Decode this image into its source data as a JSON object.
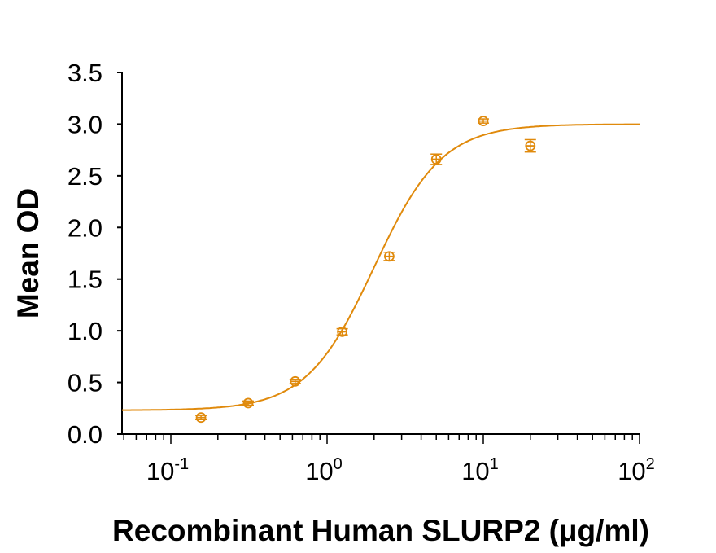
{
  "chart_data": {
    "type": "scatter",
    "title": "",
    "xlabel": "Recombinant Human SLURP2 (μg/ml)",
    "ylabel": "Mean OD",
    "xscale": "log",
    "xlim": [
      0.05,
      100
    ],
    "ylim": [
      0,
      3.5
    ],
    "x_ticks": [
      {
        "value": 0.1,
        "base": "10",
        "exp": "-1"
      },
      {
        "value": 1,
        "base": "10",
        "exp": "0"
      },
      {
        "value": 10,
        "base": "10",
        "exp": "1"
      },
      {
        "value": 100,
        "base": "10",
        "exp": "2"
      }
    ],
    "y_ticks": [
      "0.0",
      "0.5",
      "1.0",
      "1.5",
      "2.0",
      "2.5",
      "3.0",
      "3.5"
    ],
    "grid": false,
    "legend": null,
    "series": [
      {
        "name": "Mean OD",
        "color": "#E08A0C",
        "marker": "open-circle",
        "error_bars": true,
        "x": [
          0.156,
          0.3125,
          0.625,
          1.25,
          2.5,
          5,
          10,
          20
        ],
        "y": [
          0.16,
          0.3,
          0.51,
          0.99,
          1.72,
          2.66,
          3.03,
          2.79
        ],
        "err": [
          0.02,
          0.02,
          0.02,
          0.03,
          0.04,
          0.05,
          0.02,
          0.06
        ]
      }
    ],
    "fit_curve": {
      "model": "4-parameter logistic",
      "color": "#E08A0C",
      "bottom": 0.23,
      "top": 3.0,
      "ec50": 2.0,
      "hill": 2.0
    }
  }
}
